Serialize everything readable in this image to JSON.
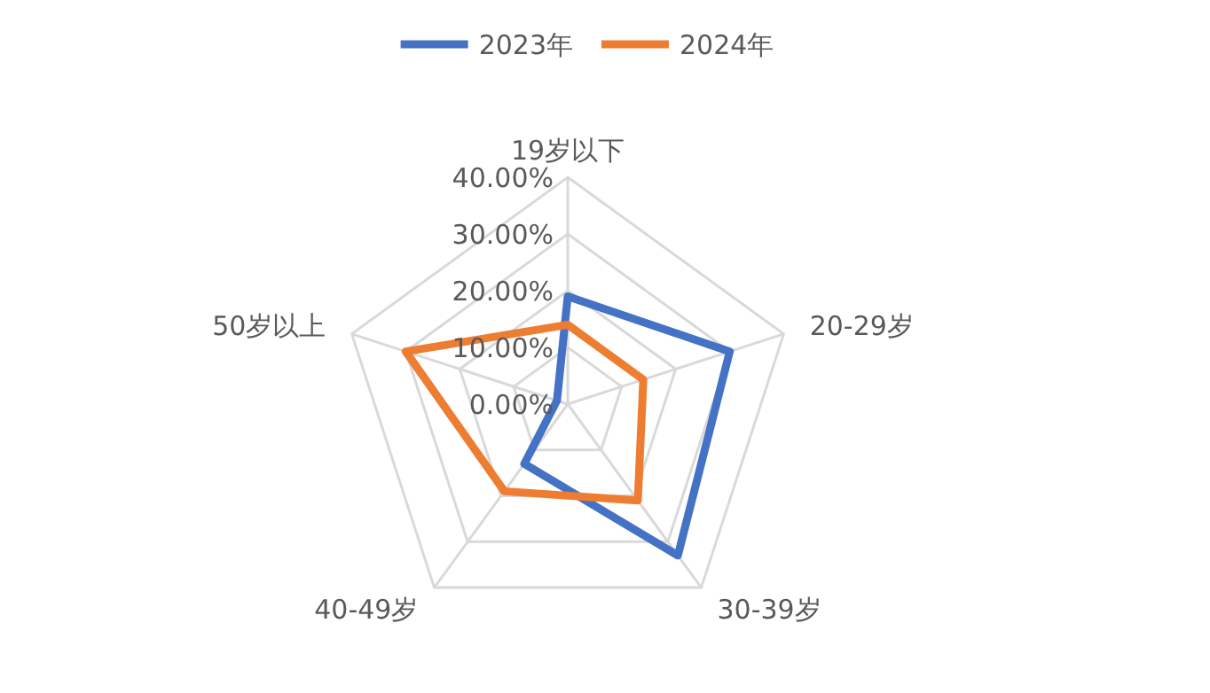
{
  "chart_data": {
    "type": "radar",
    "categories": [
      "19岁以下",
      "20-29岁",
      "30-39岁",
      "40-49岁",
      "50岁以上"
    ],
    "series": [
      {
        "name": "2023年",
        "color": "#4472c4",
        "values": [
          19,
          30,
          33,
          13,
          2
        ]
      },
      {
        "name": "2024年",
        "color": "#ed7d31",
        "values": [
          14,
          14,
          21,
          19,
          30
        ]
      }
    ],
    "ylim": [
      0,
      40
    ],
    "yticks": [
      {
        "value": 0,
        "label": "0.00%"
      },
      {
        "value": 10,
        "label": "10.00%"
      },
      {
        "value": 20,
        "label": "20.00%"
      },
      {
        "value": 30,
        "label": "30.00%"
      },
      {
        "value": 40,
        "label": "40.00%"
      }
    ],
    "grid": true,
    "legend": "top",
    "marker": "none"
  }
}
